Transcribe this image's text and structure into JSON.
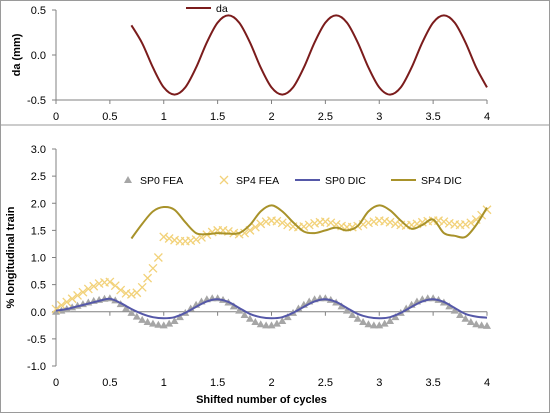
{
  "chart_data": [
    {
      "type": "line",
      "title": "",
      "xlabel": "",
      "ylabel": "da (mm)",
      "xlim": [
        0,
        4
      ],
      "ylim": [
        -0.5,
        0.5
      ],
      "xticks": [
        "0",
        "0.5",
        "1",
        "1.5",
        "2",
        "2.5",
        "3",
        "3.5",
        "4"
      ],
      "yticks": [
        "0.5",
        "0.0",
        "-0.5"
      ],
      "legend_position": "top-center",
      "grid": false,
      "series": [
        {
          "name": "da",
          "color": "#7b1c1c",
          "marker": "line",
          "x": [
            0.7,
            0.8,
            0.9,
            1.0,
            1.1,
            1.2,
            1.3,
            1.4,
            1.5,
            1.6,
            1.7,
            1.8,
            1.9,
            2.0,
            2.1,
            2.2,
            2.3,
            2.4,
            2.5,
            2.6,
            2.7,
            2.8,
            2.9,
            3.0,
            3.1,
            3.2,
            3.3,
            3.4,
            3.5,
            3.6,
            3.7,
            3.8,
            3.9,
            4.0
          ],
          "y": [
            0.33,
            0.13,
            -0.14,
            -0.36,
            -0.44,
            -0.36,
            -0.14,
            0.14,
            0.36,
            0.44,
            0.36,
            0.14,
            -0.14,
            -0.36,
            -0.44,
            -0.36,
            -0.14,
            0.14,
            0.36,
            0.44,
            0.36,
            0.14,
            -0.14,
            -0.36,
            -0.44,
            -0.36,
            -0.14,
            0.14,
            0.36,
            0.44,
            0.36,
            0.14,
            -0.14,
            -0.36
          ]
        }
      ]
    },
    {
      "type": "scatter",
      "title": "",
      "xlabel": "Shifted number of cycles",
      "ylabel": "% longitudinal train",
      "xlim": [
        0,
        4
      ],
      "ylim": [
        -1.0,
        3.0
      ],
      "xticks": [
        "0",
        "0.5",
        "1",
        "1.5",
        "2",
        "2.5",
        "3",
        "3.5",
        "4"
      ],
      "yticks": [
        "3.0",
        "2.5",
        "2.0",
        "1.5",
        "1.0",
        "0.5",
        "0.0",
        "-0.5",
        "-1.0"
      ],
      "legend_position": "top",
      "grid": false,
      "series": [
        {
          "name": "SP0 FEA",
          "color": "#a6a6a6",
          "marker": "triangle",
          "x": [
            0.0,
            0.05,
            0.1,
            0.15,
            0.2,
            0.25,
            0.3,
            0.35,
            0.4,
            0.45,
            0.5,
            0.55,
            0.6,
            0.65,
            0.7,
            0.75,
            0.8,
            0.85,
            0.9,
            0.95,
            1.0,
            1.05,
            1.1,
            1.15,
            1.2,
            1.25,
            1.3,
            1.35,
            1.4,
            1.45,
            1.5,
            1.55,
            1.6,
            1.65,
            1.7,
            1.75,
            1.8,
            1.85,
            1.9,
            1.95,
            2.0,
            2.05,
            2.1,
            2.15,
            2.2,
            2.25,
            2.3,
            2.35,
            2.4,
            2.45,
            2.5,
            2.55,
            2.6,
            2.65,
            2.7,
            2.75,
            2.8,
            2.85,
            2.9,
            2.95,
            3.0,
            3.05,
            3.1,
            3.15,
            3.2,
            3.25,
            3.3,
            3.35,
            3.4,
            3.45,
            3.5,
            3.55,
            3.6,
            3.65,
            3.7,
            3.75,
            3.8,
            3.85,
            3.9,
            3.95,
            4.0
          ],
          "y": [
            0.0,
            0.02,
            0.05,
            0.08,
            0.11,
            0.14,
            0.17,
            0.2,
            0.22,
            0.24,
            0.25,
            0.21,
            0.14,
            0.06,
            -0.02,
            -0.09,
            -0.15,
            -0.19,
            -0.22,
            -0.24,
            -0.25,
            -0.22,
            -0.17,
            -0.1,
            -0.02,
            0.06,
            0.13,
            0.19,
            0.23,
            0.25,
            0.25,
            0.22,
            0.17,
            0.1,
            0.02,
            -0.06,
            -0.13,
            -0.19,
            -0.23,
            -0.25,
            -0.25,
            -0.22,
            -0.17,
            -0.1,
            -0.02,
            0.06,
            0.13,
            0.19,
            0.23,
            0.25,
            0.25,
            0.22,
            0.17,
            0.1,
            0.02,
            -0.06,
            -0.13,
            -0.19,
            -0.23,
            -0.25,
            -0.25,
            -0.22,
            -0.17,
            -0.1,
            -0.02,
            0.06,
            0.13,
            0.19,
            0.23,
            0.25,
            0.25,
            0.22,
            0.17,
            0.1,
            0.02,
            -0.06,
            -0.13,
            -0.19,
            -0.23,
            -0.25,
            -0.26
          ]
        },
        {
          "name": "SP4 FEA",
          "color": "#f2d27a",
          "marker": "x",
          "x": [
            0.0,
            0.05,
            0.1,
            0.15,
            0.2,
            0.25,
            0.3,
            0.35,
            0.4,
            0.45,
            0.5,
            0.55,
            0.6,
            0.65,
            0.7,
            0.75,
            0.8,
            0.85,
            0.9,
            0.95,
            1.0,
            1.05,
            1.1,
            1.15,
            1.2,
            1.25,
            1.3,
            1.35,
            1.4,
            1.45,
            1.5,
            1.55,
            1.6,
            1.65,
            1.7,
            1.75,
            1.8,
            1.85,
            1.9,
            1.95,
            2.0,
            2.05,
            2.1,
            2.15,
            2.2,
            2.25,
            2.3,
            2.35,
            2.4,
            2.45,
            2.5,
            2.55,
            2.6,
            2.65,
            2.7,
            2.75,
            2.8,
            2.85,
            2.9,
            2.95,
            3.0,
            3.05,
            3.1,
            3.15,
            3.2,
            3.25,
            3.3,
            3.35,
            3.4,
            3.45,
            3.5,
            3.55,
            3.6,
            3.65,
            3.7,
            3.75,
            3.8,
            3.85,
            3.9,
            3.95,
            4.0
          ],
          "y": [
            0.05,
            0.12,
            0.18,
            0.24,
            0.3,
            0.36,
            0.42,
            0.47,
            0.52,
            0.54,
            0.55,
            0.48,
            0.4,
            0.34,
            0.32,
            0.35,
            0.45,
            0.62,
            0.8,
            1.0,
            1.38,
            1.35,
            1.32,
            1.3,
            1.3,
            1.31,
            1.33,
            1.37,
            1.42,
            1.47,
            1.5,
            1.5,
            1.48,
            1.45,
            1.43,
            1.45,
            1.5,
            1.56,
            1.62,
            1.66,
            1.68,
            1.67,
            1.64,
            1.6,
            1.57,
            1.56,
            1.57,
            1.6,
            1.63,
            1.65,
            1.66,
            1.64,
            1.61,
            1.58,
            1.56,
            1.56,
            1.58,
            1.61,
            1.64,
            1.66,
            1.68,
            1.67,
            1.65,
            1.62,
            1.6,
            1.59,
            1.6,
            1.62,
            1.65,
            1.67,
            1.68,
            1.68,
            1.66,
            1.63,
            1.61,
            1.6,
            1.61,
            1.64,
            1.7,
            1.78,
            1.88
          ]
        },
        {
          "name": "SP0 DIC",
          "color": "#5558a8",
          "marker": "line",
          "x": [
            0.0,
            0.1,
            0.2,
            0.3,
            0.4,
            0.5,
            0.6,
            0.7,
            0.8,
            0.9,
            1.0,
            1.1,
            1.2,
            1.3,
            1.4,
            1.5,
            1.6,
            1.7,
            1.8,
            1.9,
            2.0,
            2.1,
            2.2,
            2.3,
            2.4,
            2.5,
            2.6,
            2.7,
            2.8,
            2.9,
            3.0,
            3.1,
            3.2,
            3.3,
            3.4,
            3.5,
            3.6,
            3.7,
            3.8,
            3.9,
            4.0
          ],
          "y": [
            0.02,
            0.05,
            0.1,
            0.15,
            0.2,
            0.24,
            0.16,
            0.05,
            -0.04,
            -0.1,
            -0.12,
            -0.1,
            -0.02,
            0.09,
            0.19,
            0.23,
            0.18,
            0.07,
            -0.04,
            -0.1,
            -0.12,
            -0.1,
            -0.02,
            0.09,
            0.19,
            0.23,
            0.18,
            0.07,
            -0.04,
            -0.1,
            -0.12,
            -0.1,
            -0.02,
            0.09,
            0.19,
            0.23,
            0.18,
            0.07,
            -0.04,
            -0.09,
            -0.11
          ]
        },
        {
          "name": "SP4 DIC",
          "color": "#a8922a",
          "marker": "line",
          "x": [
            0.7,
            0.8,
            0.9,
            1.0,
            1.1,
            1.2,
            1.3,
            1.4,
            1.5,
            1.6,
            1.7,
            1.8,
            1.9,
            2.0,
            2.1,
            2.2,
            2.3,
            2.4,
            2.5,
            2.6,
            2.7,
            2.8,
            2.9,
            3.0,
            3.1,
            3.2,
            3.3,
            3.4,
            3.5,
            3.6,
            3.7,
            3.8,
            3.9,
            4.0
          ],
          "y": [
            1.35,
            1.62,
            1.85,
            1.93,
            1.88,
            1.65,
            1.45,
            1.43,
            1.45,
            1.44,
            1.45,
            1.6,
            1.85,
            1.96,
            1.85,
            1.65,
            1.48,
            1.45,
            1.5,
            1.55,
            1.5,
            1.58,
            1.85,
            1.96,
            1.87,
            1.68,
            1.53,
            1.6,
            1.7,
            1.45,
            1.4,
            1.38,
            1.6,
            1.92
          ]
        }
      ]
    }
  ]
}
